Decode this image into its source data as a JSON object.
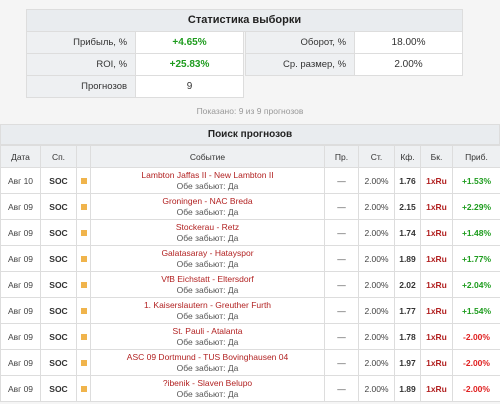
{
  "stats": {
    "title": "Статистика выборки",
    "left": [
      {
        "label": "Прибыль, %",
        "value": "+4.65%"
      },
      {
        "label": "ROI, %",
        "value": "+25.83%"
      },
      {
        "label": "Прогнозов",
        "value": "9"
      }
    ],
    "right": [
      {
        "label": "Оборот, %",
        "value": "18.00%"
      },
      {
        "label": "Ср. размер, %",
        "value": "2.00%"
      }
    ]
  },
  "summary": "Показано: 9 из 9 прогнозов",
  "forecasts": {
    "title": "Поиск прогнозов",
    "columns": [
      "Дата",
      "Сп.",
      "",
      "Событие",
      "Пр.",
      "Ст.",
      "Кф.",
      "Бк.",
      "Приб."
    ],
    "rows": [
      {
        "date": "Авг 10",
        "sport": "SOC",
        "event": "Lambton Jaffas II - New Lambton II",
        "pick": "Обе забьют: Да",
        "pr": "—",
        "stake": "2.00%",
        "odds": "1.76",
        "bk": "1xRu",
        "profit": "+1.53%"
      },
      {
        "date": "Авг 09",
        "sport": "SOC",
        "event": "Groningen - NAC Breda",
        "pick": "Обе забьют: Да",
        "pr": "—",
        "stake": "2.00%",
        "odds": "2.15",
        "bk": "1xRu",
        "profit": "+2.29%"
      },
      {
        "date": "Авг 09",
        "sport": "SOC",
        "event": "Stockerau - Retz",
        "pick": "Обе забьют: Да",
        "pr": "—",
        "stake": "2.00%",
        "odds": "1.74",
        "bk": "1xRu",
        "profit": "+1.48%"
      },
      {
        "date": "Авг 09",
        "sport": "SOC",
        "event": "Galatasaray - Hatayspor",
        "pick": "Обе забьют: Да",
        "pr": "—",
        "stake": "2.00%",
        "odds": "1.89",
        "bk": "1xRu",
        "profit": "+1.77%"
      },
      {
        "date": "Авг 09",
        "sport": "SOC",
        "event": "VfB Eichstatt - Eltersdorf",
        "pick": "Обе забьют: Да",
        "pr": "—",
        "stake": "2.00%",
        "odds": "2.02",
        "bk": "1xRu",
        "profit": "+2.04%"
      },
      {
        "date": "Авг 09",
        "sport": "SOC",
        "event": "1. Kaiserslautern - Greuther Furth",
        "pick": "Обе забьют: Да",
        "pr": "—",
        "stake": "2.00%",
        "odds": "1.77",
        "bk": "1xRu",
        "profit": "+1.54%"
      },
      {
        "date": "Авг 09",
        "sport": "SOC",
        "event": "St. Pauli - Atalanta",
        "pick": "Обе забьют: Да",
        "pr": "—",
        "stake": "2.00%",
        "odds": "1.78",
        "bk": "1xRu",
        "profit": "-2.00%"
      },
      {
        "date": "Авг 09",
        "sport": "SOC",
        "event": "ASC 09 Dortmund - TUS Bovinghausen 04",
        "pick": "Обе забьют: Да",
        "pr": "—",
        "stake": "2.00%",
        "odds": "1.97",
        "bk": "1xRu",
        "profit": "-2.00%"
      },
      {
        "date": "Авг 09",
        "sport": "SOC",
        "event": "?ibenik - Slaven Belupo",
        "pick": "Обе забьют: Да",
        "pr": "—",
        "stake": "2.00%",
        "odds": "1.89",
        "bk": "1xRu",
        "profit": "-2.00%"
      }
    ]
  },
  "colors": {
    "positive": "#1e9c1e",
    "negative": "#e02020",
    "link": "#b22222",
    "marker": "#f0b44c"
  }
}
